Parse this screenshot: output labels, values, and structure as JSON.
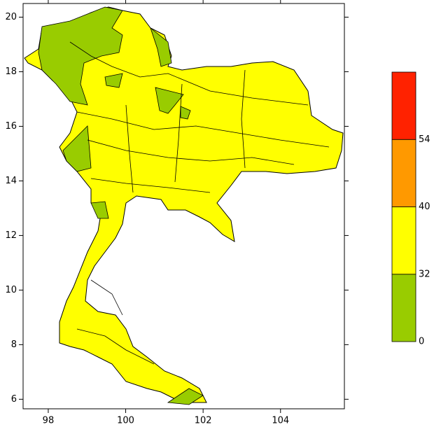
{
  "map": {
    "xlim": [
      97.35,
      105.65
    ],
    "ylim": [
      5.65,
      20.5
    ],
    "xticks": [
      98,
      100,
      102,
      104
    ],
    "yticks": [
      6,
      8,
      10,
      12,
      14,
      16,
      18,
      20
    ],
    "colorbar": {
      "levels": [
        0,
        32,
        40,
        54
      ],
      "colors": [
        "#99cc00",
        "#ffff00",
        "#ff9900",
        "#ff2200"
      ]
    }
  }
}
